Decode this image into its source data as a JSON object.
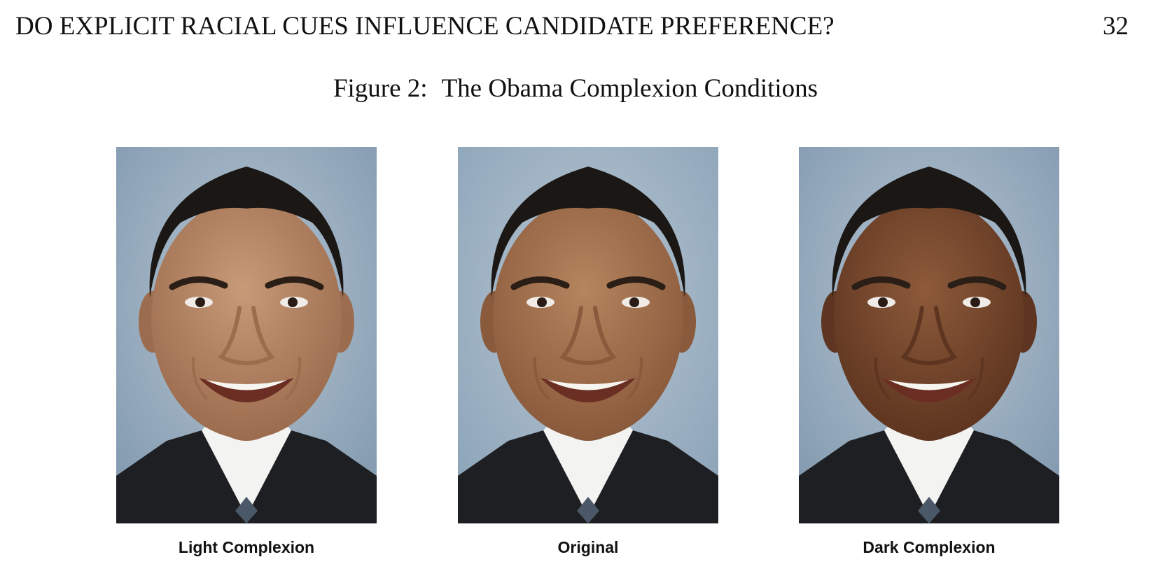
{
  "header": {
    "running_title": "DO EXPLICIT RACIAL CUES INFLUENCE CANDIDATE PREFERENCE?",
    "page_number": "32"
  },
  "figure": {
    "label": "Figure 2:",
    "title": "The Obama Complexion Conditions",
    "panels": [
      {
        "label": "Light Complexion",
        "skin_color": "#c79a78",
        "skin_shadow": "#9c6c4e",
        "background_color": "#7f97ad"
      },
      {
        "label": "Original",
        "skin_color": "#b5855f",
        "skin_shadow": "#8a5a3c",
        "background_color": "#8aa2b6"
      },
      {
        "label": "Dark Complexion",
        "skin_color": "#8d5a3a",
        "skin_shadow": "#5e3520",
        "background_color": "#7f97ad"
      }
    ]
  }
}
